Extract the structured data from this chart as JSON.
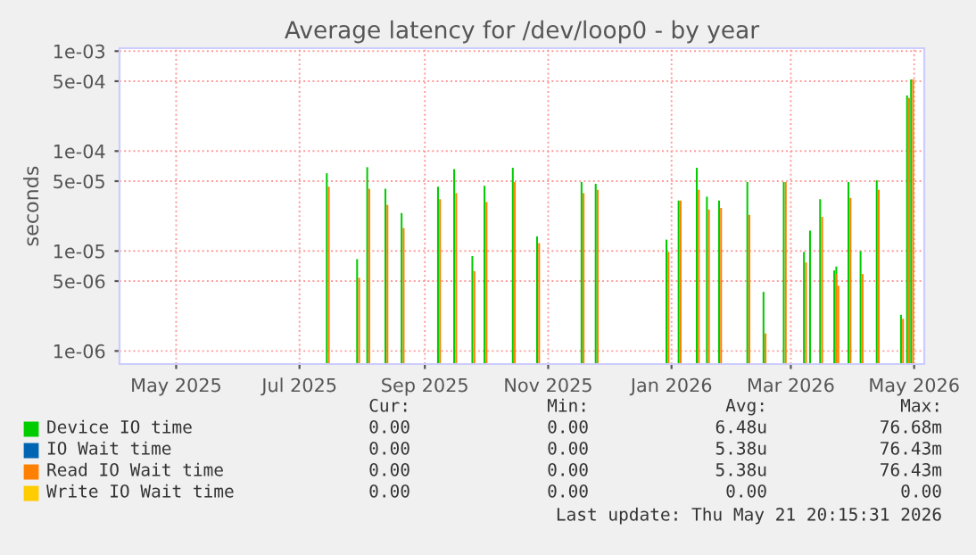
{
  "chart_data": {
    "type": "bar",
    "title": "Average latency for /dev/loop0 - by year",
    "ylabel": "seconds",
    "x": [
      "2025-07-30",
      "2025-08-14",
      "2025-08-19",
      "2025-08-28",
      "2025-09-05",
      "2025-09-23",
      "2025-10-01",
      "2025-10-10",
      "2025-10-16",
      "2025-10-30",
      "2025-11-11",
      "2025-12-03",
      "2025-12-10",
      "2026-01-14",
      "2026-01-20",
      "2026-01-29",
      "2026-02-03",
      "2026-02-09",
      "2026-02-23",
      "2026-03-03",
      "2026-03-13",
      "2026-03-23",
      "2026-03-26",
      "2026-03-31",
      "2026-04-07",
      "2026-04-08",
      "2026-04-14",
      "2026-04-20",
      "2026-04-28",
      "2026-05-10",
      "2026-05-13",
      "2026-05-15"
    ],
    "series": [
      {
        "name": "Device IO time",
        "color": "#00cc00",
        "values": [
          6e-05,
          8.3e-06,
          6.9e-05,
          4.2e-05,
          2.4e-05,
          4.4e-05,
          6.6e-05,
          8.9e-06,
          4.5e-05,
          6.8e-05,
          1.4e-05,
          4.9e-05,
          4.7e-05,
          1.3e-05,
          3.2e-05,
          6.8e-05,
          3.5e-05,
          3.2e-05,
          4.9e-05,
          3.9e-06,
          4.9e-05,
          9.8e-06,
          1.6e-05,
          3.3e-05,
          6.4e-06,
          7e-06,
          4.9e-05,
          1e-05,
          5.1e-05,
          2.3e-06,
          0.00036,
          0.00052
        ]
      },
      {
        "name": "IO Wait time",
        "color": "#0066b3",
        "values": [
          null,
          null,
          null,
          null,
          null,
          null,
          null,
          null,
          null,
          null,
          null,
          null,
          null,
          null,
          null,
          null,
          null,
          null,
          null,
          null,
          null,
          null,
          null,
          null,
          null,
          null,
          null,
          null,
          null,
          null,
          null,
          null
        ]
      },
      {
        "name": "Read IO Wait time",
        "color": "#ff8000",
        "values": [
          4.4e-05,
          5.4e-06,
          4.2e-05,
          2.9e-05,
          1.7e-05,
          3.3e-05,
          3.8e-05,
          6.3e-06,
          3.1e-05,
          4.9e-05,
          1.2e-05,
          3.8e-05,
          4.1e-05,
          9.8e-06,
          3.2e-05,
          4.1e-05,
          2.6e-05,
          2.7e-05,
          2.3e-05,
          1.5e-06,
          4.9e-05,
          7.7e-06,
          null,
          2.2e-05,
          5.9e-06,
          4.5e-06,
          3.4e-05,
          5.9e-06,
          4.1e-05,
          2.1e-06,
          0.00034,
          0.00052
        ]
      },
      {
        "name": "Write IO Wait time",
        "color": "#ffcc00",
        "values": [
          null,
          null,
          null,
          null,
          null,
          null,
          null,
          null,
          null,
          null,
          null,
          null,
          null,
          null,
          null,
          null,
          null,
          null,
          null,
          null,
          null,
          null,
          null,
          null,
          null,
          null,
          null,
          null,
          null,
          null,
          null,
          null
        ]
      }
    ],
    "log": "y",
    "xlim": [
      "2025-04-18",
      "2026-05-21"
    ],
    "ylim": [
      7.4e-07,
      0.00107
    ],
    "xticks": [
      {
        "value": "2025-05-16",
        "label": "May 2025"
      },
      {
        "value": "2025-07-16",
        "label": "Jul 2025"
      },
      {
        "value": "2025-09-16",
        "label": "Sep 2025"
      },
      {
        "value": "2025-11-16",
        "label": "Nov 2025"
      },
      {
        "value": "2026-01-16",
        "label": "Jan 2026"
      },
      {
        "value": "2026-03-16",
        "label": "Mar 2026"
      },
      {
        "value": "2026-05-16",
        "label": "May 2026"
      }
    ],
    "yticks": [
      {
        "value": 1e-06,
        "label": "1e-06"
      },
      {
        "value": 5e-06,
        "label": "5e-06"
      },
      {
        "value": 1e-05,
        "label": "1e-05"
      },
      {
        "value": 5e-05,
        "label": "5e-05"
      },
      {
        "value": 0.0001,
        "label": "1e-04"
      },
      {
        "value": 0.0005,
        "label": "5e-04"
      },
      {
        "value": 0.001,
        "label": "1e-03"
      }
    ],
    "grid": true,
    "legend": "bottom",
    "annotations": [
      "Cur:",
      "Min:",
      "Avg:",
      "Max:",
      "0.00",
      "0.00",
      "6.48u",
      "76.68m",
      "0.00",
      "0.00",
      "5.38u",
      "76.43m",
      "0.00",
      "0.00",
      "5.38u",
      "76.43m",
      "0.00",
      "0.00",
      "0.00",
      "0.00",
      "Last update: Thu May 21 20:15:31 2026"
    ]
  }
}
